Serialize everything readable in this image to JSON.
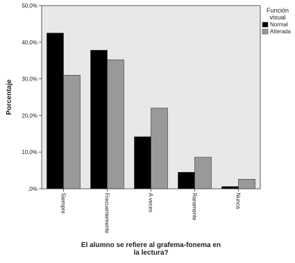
{
  "chart_data": {
    "type": "bar",
    "categories": [
      "Siempre",
      "Frecuentemente",
      "A veces",
      "Raramente",
      "Nunca"
    ],
    "series": [
      {
        "name": "Normal",
        "color": "#000000",
        "values": [
          42.5,
          37.8,
          14.2,
          4.5,
          0.6
        ]
      },
      {
        "name": "Alterada",
        "color": "#999999",
        "values": [
          31.0,
          35.2,
          22.0,
          8.6,
          2.6
        ]
      }
    ],
    "yticks": [
      ",0%",
      "10,0%",
      "20,0%",
      "30,0%",
      "40,0%",
      "50,0%"
    ],
    "ylim": [
      0,
      50
    ],
    "ylabel": "Porcentaje",
    "xlabel_lines": [
      "El alumno se refiere al grafema-fonema en",
      "la lectura?"
    ],
    "legend": {
      "title_lines": [
        "Función",
        "visual"
      ],
      "placement": "right"
    },
    "plot_background": "#e8e8e8",
    "grid": false
  }
}
